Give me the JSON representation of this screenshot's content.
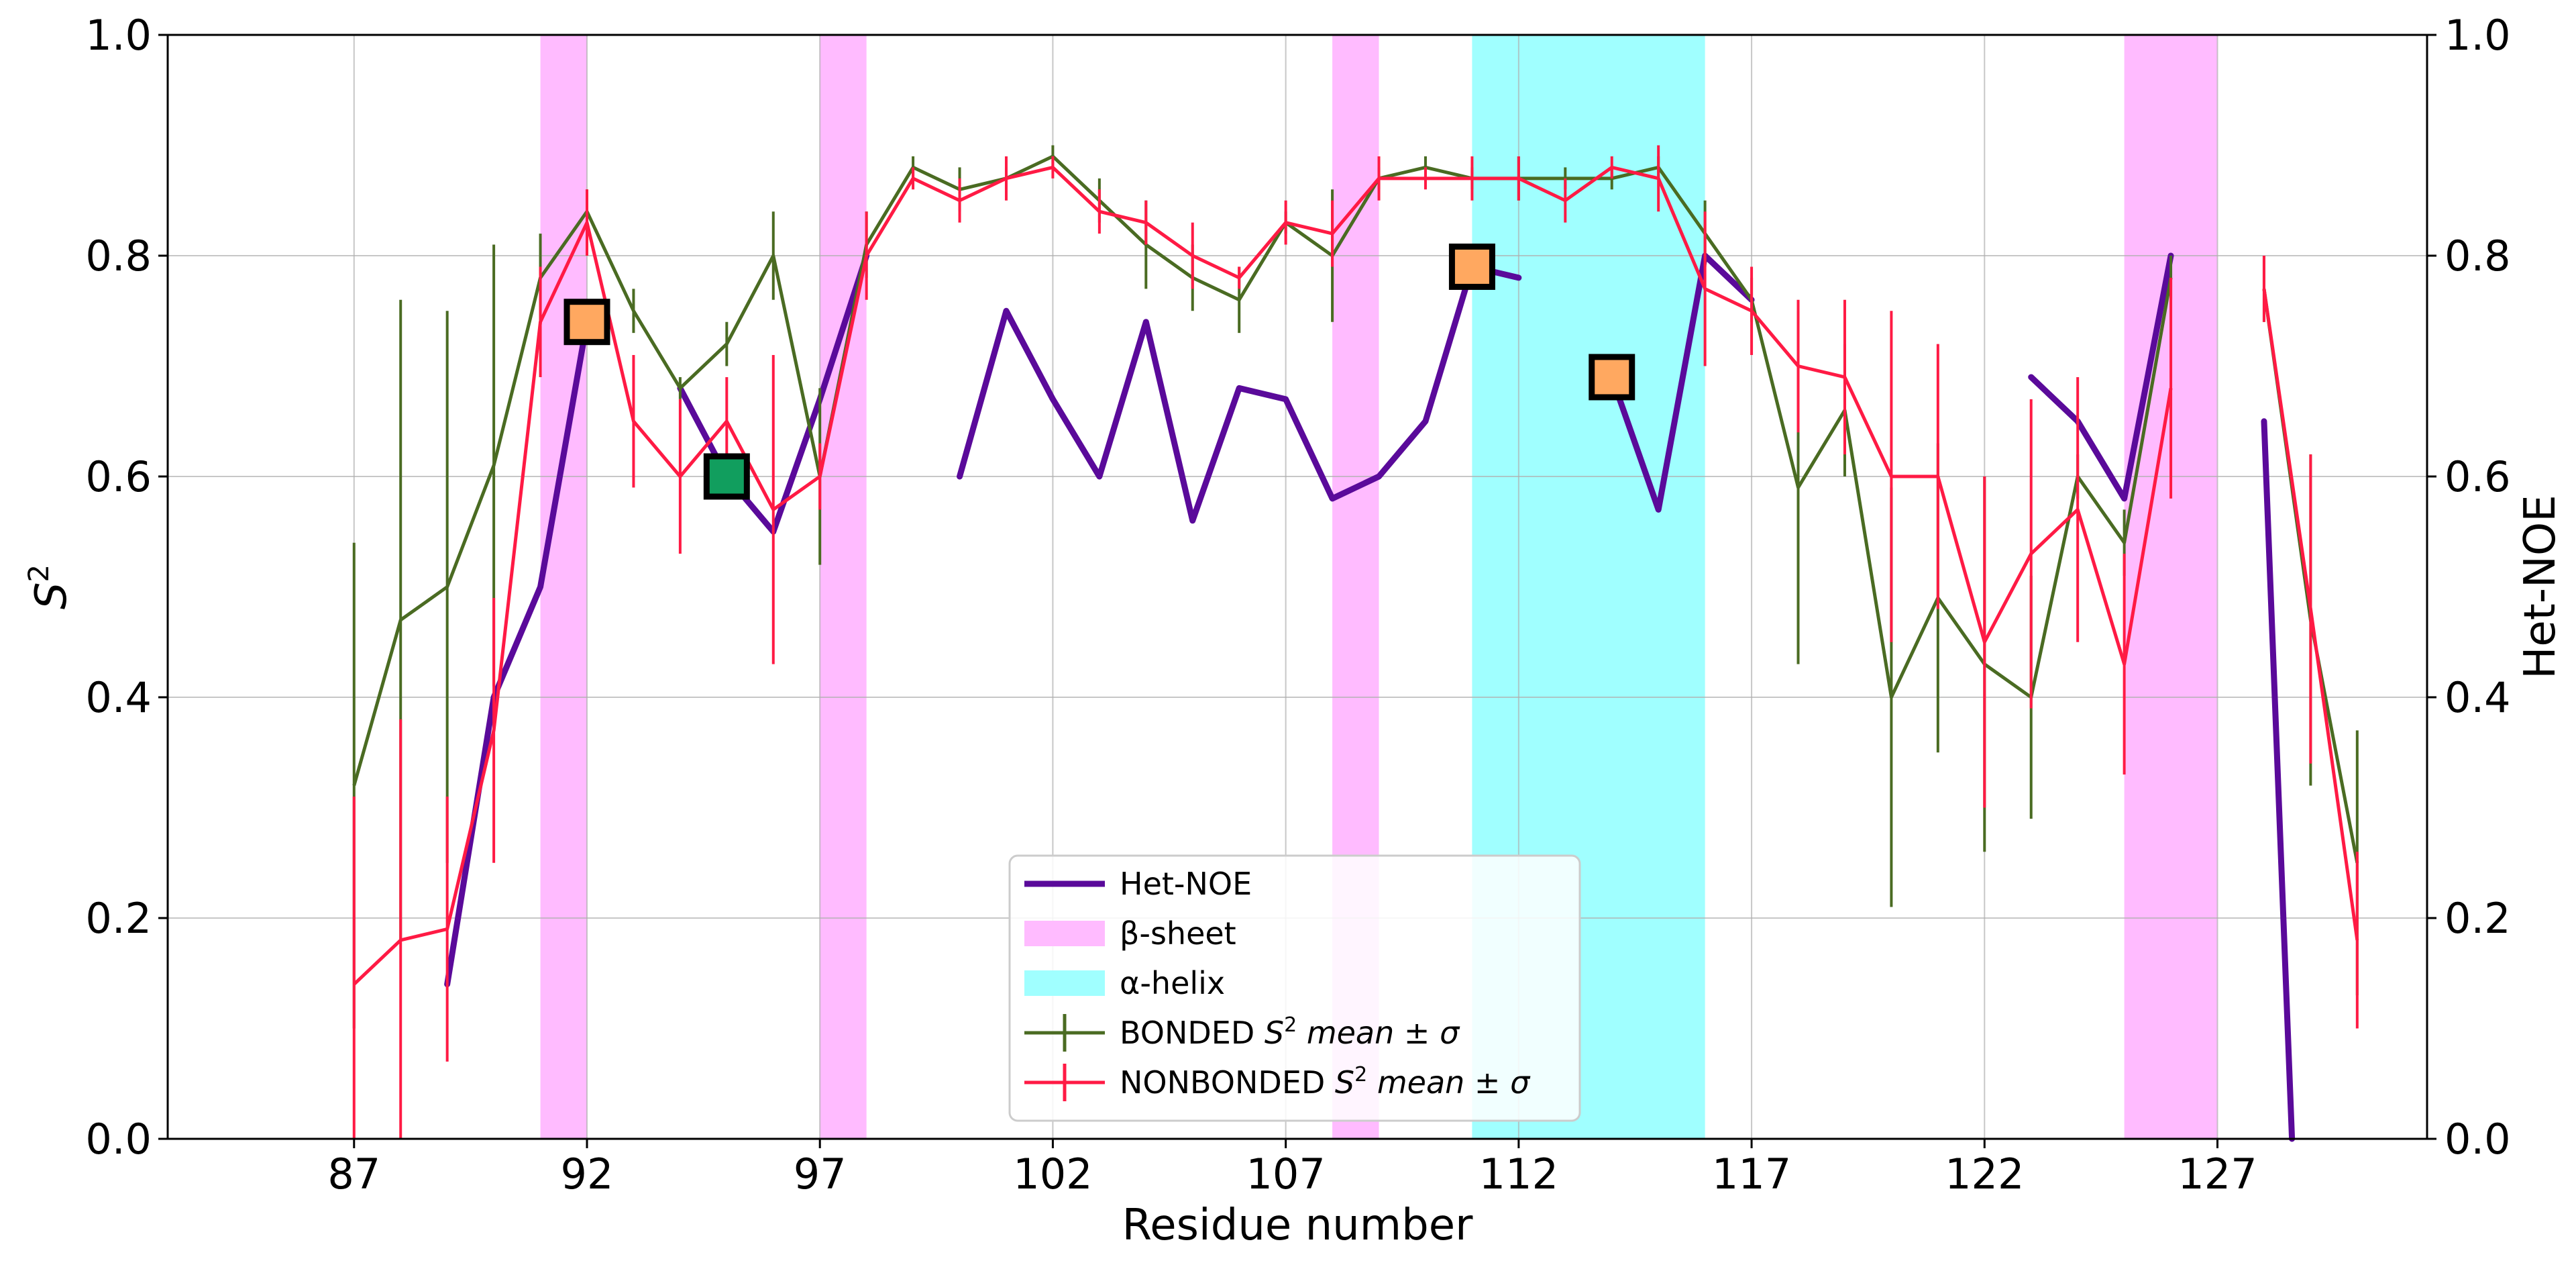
{
  "chart_data": {
    "type": "line",
    "title": "",
    "xlabel": "Residue number",
    "ylabel": "S2",
    "ylabel_base": "S",
    "ylabel_sup": "2",
    "y2label": "Het-NOE",
    "xlim": [
      83.0,
      131.5
    ],
    "ylim": [
      0.0,
      1.0
    ],
    "y2lim": [
      0.0,
      1.0
    ],
    "grid": true,
    "xticks": [
      87,
      92,
      97,
      102,
      107,
      112,
      117,
      122,
      127
    ],
    "xtick_labels": [
      "87",
      "92",
      "97",
      "102",
      "107",
      "112",
      "117",
      "122",
      "127"
    ],
    "yticks": [
      0.0,
      0.2,
      0.4,
      0.6,
      0.8,
      1.0
    ],
    "ytick_labels": [
      "0.0",
      "0.2",
      "0.4",
      "0.6",
      "0.8",
      "1.0"
    ],
    "y2tick_labels": [
      "0.0",
      "0.2",
      "0.4",
      "0.6",
      "0.8",
      "1.0"
    ],
    "regions": [
      {
        "name": "β-sheet",
        "x0": 91.0,
        "x1": 92.0,
        "color": "#ffbbff"
      },
      {
        "name": "β-sheet",
        "x0": 97.0,
        "x1": 98.0,
        "color": "#ffbbff"
      },
      {
        "name": "β-sheet",
        "x0": 108.0,
        "x1": 109.0,
        "color": "#ffbbff"
      },
      {
        "name": "α-helix",
        "x0": 111.0,
        "x1": 116.0,
        "color": "#a0ffff"
      },
      {
        "name": "β-sheet",
        "x0": 125.0,
        "x1": 127.0,
        "color": "#ffbbff"
      }
    ],
    "series": [
      {
        "name": "Het-NOE",
        "kind": "line",
        "axis": "right",
        "color": "#5a0a9a",
        "segments": [
          [
            [
              89,
              0.14
            ],
            [
              90,
              0.4
            ],
            [
              91,
              0.5
            ],
            [
              92,
              0.74
            ]
          ],
          [
            [
              94,
              0.68
            ],
            [
              95,
              0.6
            ],
            [
              96,
              0.55
            ],
            [
              97,
              0.67
            ],
            [
              98,
              0.8
            ]
          ],
          [
            [
              100,
              0.6
            ],
            [
              101,
              0.75
            ],
            [
              102,
              0.67
            ],
            [
              103,
              0.6
            ],
            [
              104,
              0.74
            ],
            [
              105,
              0.56
            ],
            [
              106,
              0.68
            ],
            [
              107,
              0.67
            ],
            [
              108,
              0.58
            ],
            [
              109,
              0.6
            ],
            [
              110,
              0.65
            ],
            [
              111,
              0.79
            ],
            [
              112,
              0.78
            ]
          ],
          [
            [
              114,
              0.69
            ],
            [
              115,
              0.57
            ],
            [
              116,
              0.8
            ],
            [
              117,
              0.76
            ]
          ],
          [
            [
              123,
              0.69
            ],
            [
              124,
              0.65
            ],
            [
              125,
              0.58
            ],
            [
              126,
              0.8
            ]
          ],
          [
            [
              128,
              0.65
            ],
            [
              128.6,
              0.0
            ]
          ]
        ]
      },
      {
        "name": "BONDED S2 mean ± σ",
        "kind": "errorbar",
        "axis": "left",
        "color": "#4a6b22",
        "x": [
          87,
          88,
          89,
          90,
          91,
          92,
          93,
          94,
          95,
          96,
          97,
          98,
          99,
          100,
          101,
          102,
          103,
          104,
          105,
          106,
          107,
          108,
          109,
          110,
          111,
          112,
          113,
          114,
          115,
          116,
          117,
          118,
          119,
          120,
          121,
          122,
          123,
          124,
          125,
          126
        ],
        "y": [
          0.32,
          0.47,
          0.5,
          0.61,
          0.78,
          0.84,
          0.75,
          0.68,
          0.72,
          0.8,
          0.6,
          0.81,
          0.88,
          0.86,
          0.87,
          0.89,
          0.85,
          0.81,
          0.78,
          0.76,
          0.83,
          0.8,
          0.87,
          0.88,
          0.87,
          0.87,
          0.87,
          0.87,
          0.88,
          0.82,
          0.76,
          0.59,
          0.66,
          0.4,
          0.49,
          0.43,
          0.4,
          0.6,
          0.54,
          0.78
        ],
        "err": [
          0.22,
          0.29,
          0.25,
          0.2,
          0.04,
          0.02,
          0.02,
          0.01,
          0.02,
          0.04,
          0.08,
          0.03,
          0.01,
          0.02,
          0.01,
          0.01,
          0.02,
          0.04,
          0.03,
          0.03,
          0.01,
          0.06,
          0.01,
          0.01,
          0.01,
          0.02,
          0.01,
          0.01,
          0.01,
          0.03,
          0.02,
          0.16,
          0.06,
          0.19,
          0.14,
          0.17,
          0.11,
          0.02,
          0.03,
          0.02
        ]
      },
      {
        "name": "BONDED S2 mean ± σ",
        "kind": "errorbar",
        "axis": "left",
        "color": "#4a6b22",
        "x": [
          128,
          129,
          130
        ],
        "y": [
          0.77,
          0.47,
          0.25
        ],
        "err": [
          0.03,
          0.15,
          0.12
        ]
      },
      {
        "name": "NONBONDED S2 mean ± σ",
        "kind": "errorbar",
        "axis": "left",
        "color": "#ff1a44",
        "x": [
          87,
          88,
          89,
          90,
          91,
          92,
          93,
          94,
          95,
          96,
          97,
          98,
          99,
          100,
          101,
          102,
          103,
          104,
          105,
          106,
          107,
          108,
          109,
          110,
          111,
          112,
          113,
          114,
          115,
          116,
          117,
          118,
          119,
          120,
          121,
          122,
          123,
          124,
          125,
          126
        ],
        "y": [
          0.14,
          0.18,
          0.19,
          0.37,
          0.74,
          0.83,
          0.65,
          0.6,
          0.65,
          0.57,
          0.6,
          0.8,
          0.87,
          0.85,
          0.87,
          0.88,
          0.84,
          0.83,
          0.8,
          0.78,
          0.83,
          0.82,
          0.87,
          0.87,
          0.87,
          0.87,
          0.85,
          0.88,
          0.87,
          0.77,
          0.75,
          0.7,
          0.69,
          0.6,
          0.6,
          0.45,
          0.53,
          0.57,
          0.43,
          0.68
        ],
        "err": [
          0.17,
          0.2,
          0.12,
          0.12,
          0.05,
          0.03,
          0.06,
          0.07,
          0.04,
          0.14,
          0.03,
          0.04,
          0.01,
          0.02,
          0.02,
          0.01,
          0.02,
          0.02,
          0.03,
          0.01,
          0.02,
          0.03,
          0.02,
          0.01,
          0.02,
          0.02,
          0.02,
          0.01,
          0.03,
          0.07,
          0.04,
          0.06,
          0.07,
          0.15,
          0.12,
          0.15,
          0.14,
          0.12,
          0.1,
          0.1
        ]
      },
      {
        "name": "NONBONDED S2 mean ± σ",
        "kind": "errorbar",
        "axis": "left",
        "color": "#ff1a44",
        "x": [
          128,
          129,
          130
        ],
        "y": [
          0.77,
          0.48,
          0.18
        ],
        "err": [
          0.03,
          0.14,
          0.08
        ]
      }
    ],
    "markers": [
      {
        "x": 92,
        "y": 0.74,
        "color": "#ffa860"
      },
      {
        "x": 95,
        "y": 0.6,
        "color": "#119e5e"
      },
      {
        "x": 111,
        "y": 0.79,
        "color": "#ffa860"
      },
      {
        "x": 114,
        "y": 0.69,
        "color": "#ffa860"
      }
    ],
    "legend": {
      "position": "bottom-center",
      "entries": [
        {
          "label": "Het-NOE",
          "kind": "line",
          "color": "#5a0a9a"
        },
        {
          "label": "β-sheet",
          "kind": "patch",
          "color": "#ffbbff"
        },
        {
          "label": "α-helix",
          "kind": "patch",
          "color": "#a0ffff"
        },
        {
          "label": "BONDED ",
          "label_math": "S",
          "label_sup": "2",
          "label_tail": " mean ± σ",
          "kind": "errorbar",
          "color": "#4a6b22"
        },
        {
          "label": "NONBONDED ",
          "label_math": "S",
          "label_sup": "2",
          "label_tail": " mean ± σ",
          "kind": "errorbar",
          "color": "#ff1a44"
        }
      ]
    }
  }
}
